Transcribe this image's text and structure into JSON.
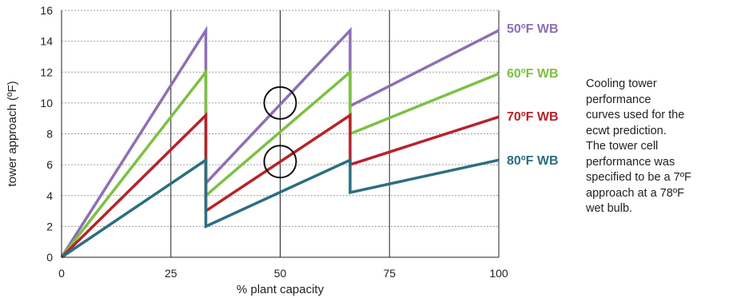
{
  "chart_data": {
    "type": "line",
    "xlabel": "% plant capacity",
    "ylabel": "tower approach (ºF)",
    "xlim": [
      0,
      100
    ],
    "ylim": [
      0,
      16
    ],
    "x_ticks": [
      0,
      25,
      50,
      75,
      100
    ],
    "y_ticks": [
      0,
      2,
      4,
      6,
      8,
      10,
      12,
      14,
      16
    ],
    "grid": {
      "x_major": "solid",
      "y_major": "dotted"
    },
    "legend": "right (inline labels)",
    "series": [
      {
        "name": "50ºF WB",
        "color": "#8e6fb3",
        "points": [
          [
            0,
            0
          ],
          [
            33,
            14.7
          ],
          [
            33,
            4.8
          ],
          [
            66,
            14.7
          ],
          [
            66,
            9.8
          ],
          [
            100,
            14.7
          ]
        ]
      },
      {
        "name": "60ºF WB",
        "color": "#7cc142",
        "points": [
          [
            0,
            0
          ],
          [
            33,
            12
          ],
          [
            33,
            4
          ],
          [
            66,
            12
          ],
          [
            66,
            8
          ],
          [
            100,
            11.9
          ]
        ]
      },
      {
        "name": "70ºF WB",
        "color": "#b5242b",
        "points": [
          [
            0,
            0
          ],
          [
            33,
            9.2
          ],
          [
            33,
            3
          ],
          [
            66,
            9.2
          ],
          [
            66,
            6
          ],
          [
            100,
            9.1
          ]
        ]
      },
      {
        "name": "80ºF WB",
        "color": "#2b6f80",
        "points": [
          [
            0,
            0
          ],
          [
            33,
            6.3
          ],
          [
            33,
            2
          ],
          [
            66,
            6.3
          ],
          [
            66,
            4.2
          ],
          [
            100,
            6.3
          ]
        ]
      }
    ],
    "annotations": [
      {
        "shape": "circle",
        "x": 50,
        "y": 10
      },
      {
        "shape": "circle",
        "x": 50,
        "y": 6.2
      }
    ]
  },
  "caption_lines": [
    "Cooling tower",
    "performance",
    "curves used for the",
    "ecwt prediction.",
    "The tower cell",
    "performance was",
    "specified to be a 7ºF",
    "approach at a 78ºF",
    "wet bulb."
  ]
}
